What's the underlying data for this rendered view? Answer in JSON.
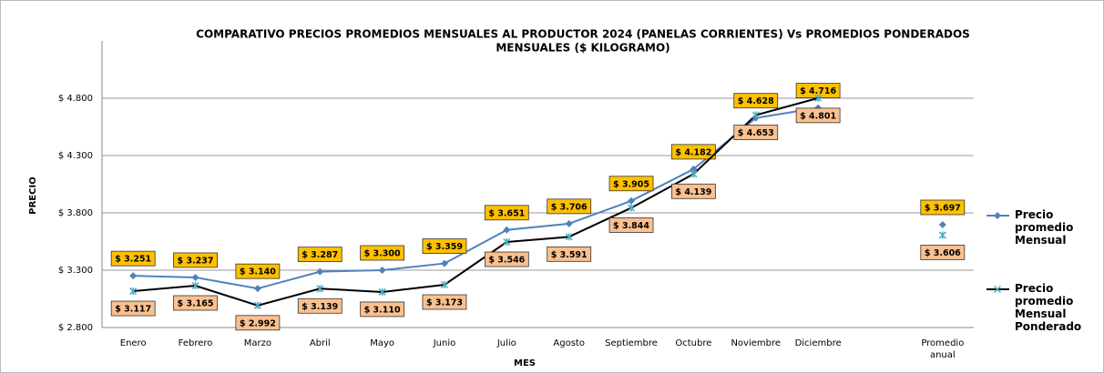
{
  "chart_data": {
    "type": "line",
    "title": "COMPARATIVO PRECIOS PROMEDIOS  MENSUALES AL PRODUCTOR 2024 (PANELAS CORRIENTES) Vs PROMEDIOS PONDERADOS",
    "subtitle": "MENSUALES  ($ KILOGRAMO)",
    "x_label": "MES",
    "y_label": "PRECIO",
    "categories": [
      "Enero",
      "Febrero",
      "Marzo",
      "Abril",
      "Mayo",
      "Junio",
      "Julio",
      "Agosto",
      "Septiembre",
      "Octubre",
      "Noviembre",
      "Diciembre",
      null,
      "Promedio anual"
    ],
    "series": [
      {
        "name": "Precio promedio Mensual",
        "color": "#4f81bd",
        "label_color": "#ffc000",
        "values": [
          3251,
          3237,
          3140,
          3287,
          3300,
          3359,
          3651,
          3706,
          3905,
          4182,
          4628,
          4716,
          null,
          3697
        ],
        "value_labels": [
          "$ 3.251",
          "$ 3.237",
          "$ 3.140",
          "$ 3.287",
          "$ 3.300",
          "$ 3.359",
          "$ 3.651",
          "$ 3.706",
          "$ 3.905",
          "$ 4.182",
          "$ 4.628",
          "$ 4.716",
          null,
          "$ 3.697"
        ]
      },
      {
        "name": "Precio promedio Mensual Ponderado",
        "color": "#000000",
        "marker_color": "#4bacc6",
        "label_color": "#fac090",
        "values": [
          3117,
          3165,
          2992,
          3139,
          3110,
          3173,
          3546,
          3591,
          3844,
          4139,
          4653,
          4801,
          null,
          3606
        ],
        "value_labels": [
          "$ 3.117",
          "$ 3.165",
          "$ 2.992",
          "$ 3.139",
          "$ 3.110",
          "$ 3.173",
          "$ 3.546",
          "$ 3.591",
          "$ 3.844",
          "$ 4.139",
          "$ 4.653",
          "$ 4.801",
          null,
          "$ 3.606"
        ]
      }
    ],
    "ylim": [
      2800,
      5300
    ],
    "yticks": [
      {
        "value": 2800,
        "label": "$ 2.800"
      },
      {
        "value": 3300,
        "label": "$ 3.300"
      },
      {
        "value": 3800,
        "label": "$ 3.800"
      },
      {
        "value": 4300,
        "label": "$ 4.300"
      },
      {
        "value": 4800,
        "label": "$ 4.800"
      }
    ],
    "grid": true,
    "legend": "right"
  }
}
